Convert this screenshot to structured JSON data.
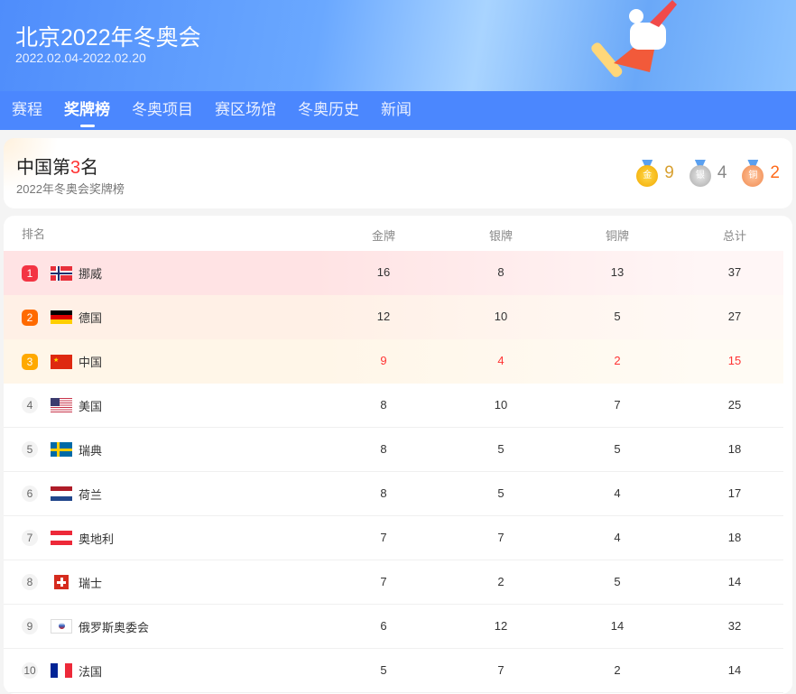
{
  "header": {
    "title": "北京2022年冬奥会",
    "dates": "2022.02.04-2022.02.20"
  },
  "nav": {
    "tabs": [
      {
        "label": "赛程"
      },
      {
        "label": "奖牌榜",
        "active": true
      },
      {
        "label": "冬奥项目"
      },
      {
        "label": "赛区场馆"
      },
      {
        "label": "冬奥历史"
      },
      {
        "label": "新闻"
      }
    ]
  },
  "summary": {
    "prefix": "中国第",
    "rank": "3",
    "suffix": "名",
    "subtitle": "2022年冬奥会奖牌榜",
    "gold": {
      "icon_label": "金",
      "count": "9",
      "color": "#e0a020"
    },
    "silver": {
      "icon_label": "银",
      "count": "4",
      "color": "#888888"
    },
    "bronze": {
      "icon_label": "铜",
      "count": "2",
      "color": "#ff6a1a"
    }
  },
  "table": {
    "headers": {
      "rank": "排名",
      "gold": "金牌",
      "silver": "银牌",
      "bronze": "铜牌",
      "total": "总计"
    },
    "rows": [
      {
        "rank": "1",
        "country": "挪威",
        "flag": "norway",
        "gold": "16",
        "silver": "8",
        "bronze": "13",
        "total": "37"
      },
      {
        "rank": "2",
        "country": "德国",
        "flag": "germany",
        "gold": "12",
        "silver": "10",
        "bronze": "5",
        "total": "27"
      },
      {
        "rank": "3",
        "country": "中国",
        "flag": "china",
        "gold": "9",
        "silver": "4",
        "bronze": "2",
        "total": "15"
      },
      {
        "rank": "4",
        "country": "美国",
        "flag": "usa",
        "gold": "8",
        "silver": "10",
        "bronze": "7",
        "total": "25"
      },
      {
        "rank": "5",
        "country": "瑞典",
        "flag": "sweden",
        "gold": "8",
        "silver": "5",
        "bronze": "5",
        "total": "18"
      },
      {
        "rank": "6",
        "country": "荷兰",
        "flag": "netherlands",
        "gold": "8",
        "silver": "5",
        "bronze": "4",
        "total": "17"
      },
      {
        "rank": "7",
        "country": "奥地利",
        "flag": "austria",
        "gold": "7",
        "silver": "7",
        "bronze": "4",
        "total": "18"
      },
      {
        "rank": "8",
        "country": "瑞士",
        "flag": "switzerland",
        "gold": "7",
        "silver": "2",
        "bronze": "5",
        "total": "14"
      },
      {
        "rank": "9",
        "country": "俄罗斯奥委会",
        "flag": "roc",
        "gold": "6",
        "silver": "12",
        "bronze": "14",
        "total": "32"
      },
      {
        "rank": "10",
        "country": "法国",
        "flag": "france",
        "gold": "5",
        "silver": "7",
        "bronze": "2",
        "total": "14"
      }
    ]
  }
}
